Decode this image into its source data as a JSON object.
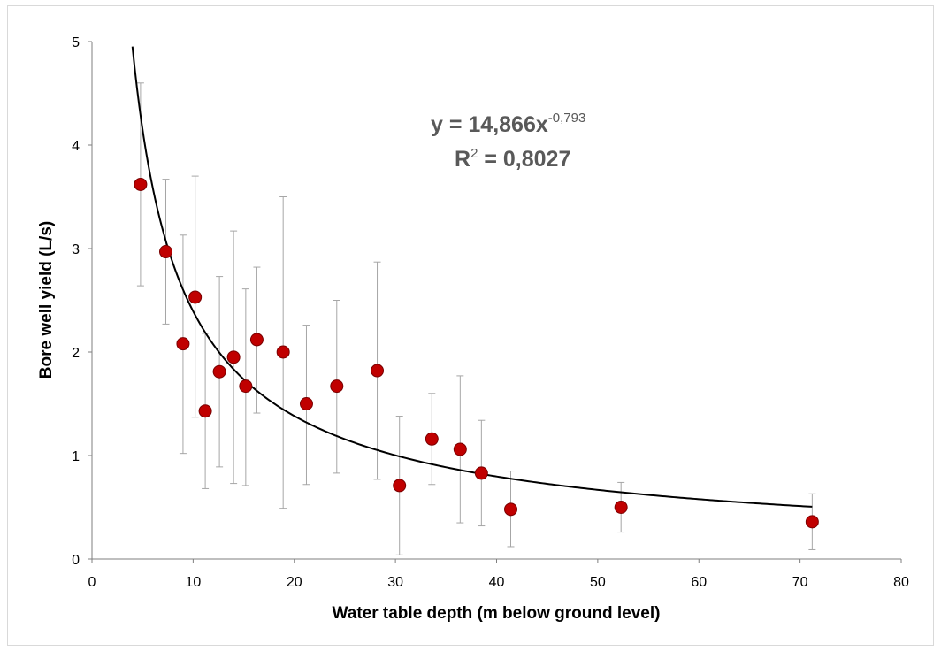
{
  "chart_data": {
    "type": "scatter",
    "xlabel": "Water table depth (m below ground level)",
    "ylabel": "Bore well yield (L/s)",
    "xlim": [
      0,
      80
    ],
    "ylim": [
      0,
      5
    ],
    "xticks": [
      "0",
      "10",
      "20",
      "30",
      "40",
      "50",
      "60",
      "70",
      "80"
    ],
    "yticks": [
      "0",
      "1",
      "2",
      "3",
      "4",
      "5"
    ],
    "grid": false,
    "marker_color": "#c00000",
    "errorbar_color": "#a6a6a6",
    "trend_color": "#000000",
    "points": [
      {
        "x": 4.8,
        "y": 3.62,
        "lo": 2.64,
        "hi": 4.6
      },
      {
        "x": 7.3,
        "y": 2.97,
        "lo": 2.27,
        "hi": 3.67
      },
      {
        "x": 9.0,
        "y": 2.08,
        "lo": 1.02,
        "hi": 3.13
      },
      {
        "x": 10.2,
        "y": 2.53,
        "lo": 1.37,
        "hi": 3.7
      },
      {
        "x": 11.2,
        "y": 1.43,
        "lo": 0.68,
        "hi": 2.18
      },
      {
        "x": 12.6,
        "y": 1.81,
        "lo": 0.89,
        "hi": 2.73
      },
      {
        "x": 14.0,
        "y": 1.95,
        "lo": 0.73,
        "hi": 3.17
      },
      {
        "x": 15.2,
        "y": 1.67,
        "lo": 0.71,
        "hi": 2.61
      },
      {
        "x": 16.3,
        "y": 2.12,
        "lo": 1.41,
        "hi": 2.82
      },
      {
        "x": 18.9,
        "y": 2.0,
        "lo": 0.49,
        "hi": 3.5
      },
      {
        "x": 21.2,
        "y": 1.5,
        "lo": 0.72,
        "hi": 2.26
      },
      {
        "x": 24.2,
        "y": 1.67,
        "lo": 0.83,
        "hi": 2.5
      },
      {
        "x": 28.2,
        "y": 1.82,
        "lo": 0.77,
        "hi": 2.87
      },
      {
        "x": 30.4,
        "y": 0.71,
        "lo": 0.04,
        "hi": 1.38
      },
      {
        "x": 33.6,
        "y": 1.16,
        "lo": 0.72,
        "hi": 1.6
      },
      {
        "x": 36.4,
        "y": 1.06,
        "lo": 0.35,
        "hi": 1.77
      },
      {
        "x": 38.5,
        "y": 0.83,
        "lo": 0.32,
        "hi": 1.34
      },
      {
        "x": 41.4,
        "y": 0.48,
        "lo": 0.12,
        "hi": 0.85
      },
      {
        "x": 52.3,
        "y": 0.5,
        "lo": 0.26,
        "hi": 0.74
      },
      {
        "x": 71.2,
        "y": 0.36,
        "lo": 0.09,
        "hi": 0.63
      }
    ],
    "trendline": {
      "type": "power",
      "a": 14.866,
      "b": -0.793,
      "x_range": [
        4.0,
        71.2
      ]
    },
    "annotations": {
      "equation_main": "y = 14,866x",
      "equation_exp": "-0,793",
      "r2_main": "R",
      "r2_sup": "2",
      "r2_rest": " = 0,8027"
    }
  }
}
